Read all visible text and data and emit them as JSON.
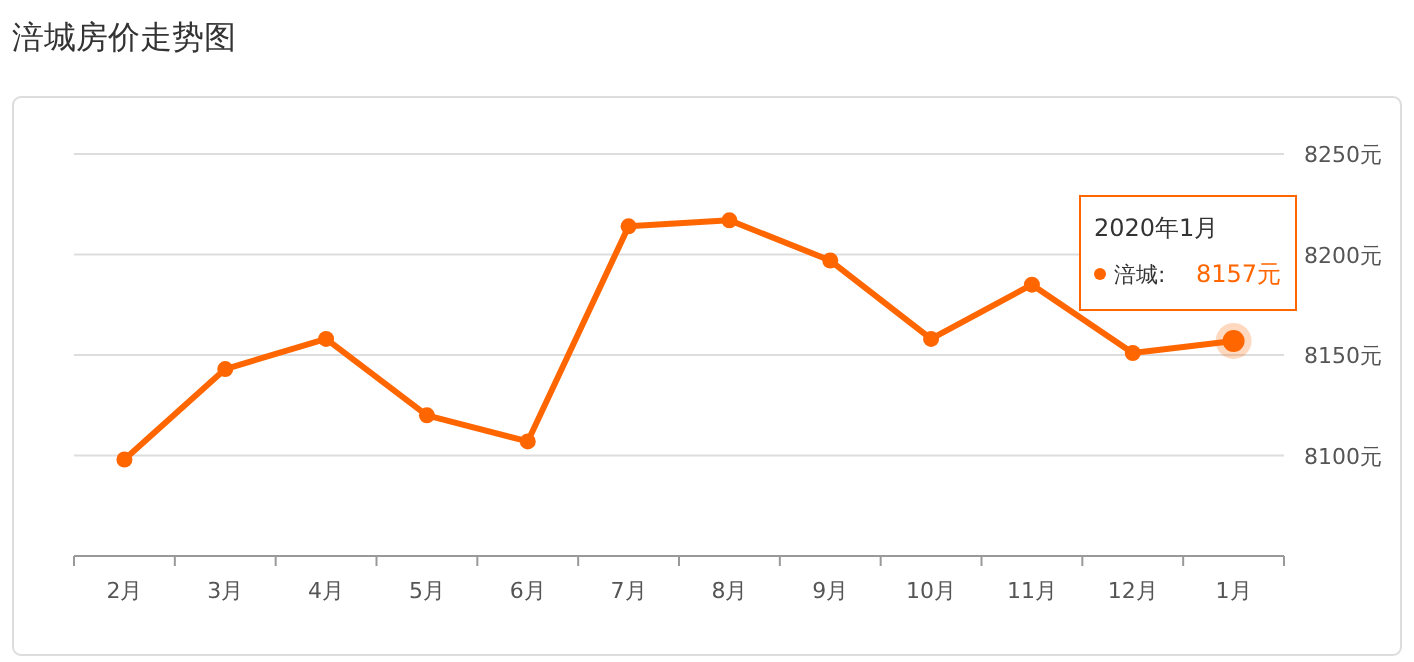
{
  "chart_data": {
    "type": "line",
    "title": "涪城房价走势图",
    "categories": [
      "2月",
      "3月",
      "4月",
      "5月",
      "6月",
      "7月",
      "8月",
      "9月",
      "10月",
      "11月",
      "12月",
      "1月"
    ],
    "series": [
      {
        "name": "涪城:",
        "color": "#ff6600",
        "values": [
          8098,
          8143,
          8158,
          8120,
          8107,
          8214,
          8217,
          8197,
          8158,
          8185,
          8151,
          8157
        ],
        "value_labels": [
          null,
          null,
          null,
          null,
          null,
          null,
          null,
          null,
          null,
          null,
          null,
          "8157元"
        ]
      }
    ],
    "annotations": [
      "2020年1月"
    ],
    "ylim": [
      8050,
      8250
    ],
    "yticks": [
      {
        "value": 8100,
        "label": "8100元"
      },
      {
        "value": 8150,
        "label": "8150元"
      },
      {
        "value": 8200,
        "label": "8200元"
      },
      {
        "value": 8250,
        "label": "8250元"
      }
    ],
    "grid": "y",
    "marker": "circle",
    "line_style": "solid",
    "legend": "top right"
  }
}
